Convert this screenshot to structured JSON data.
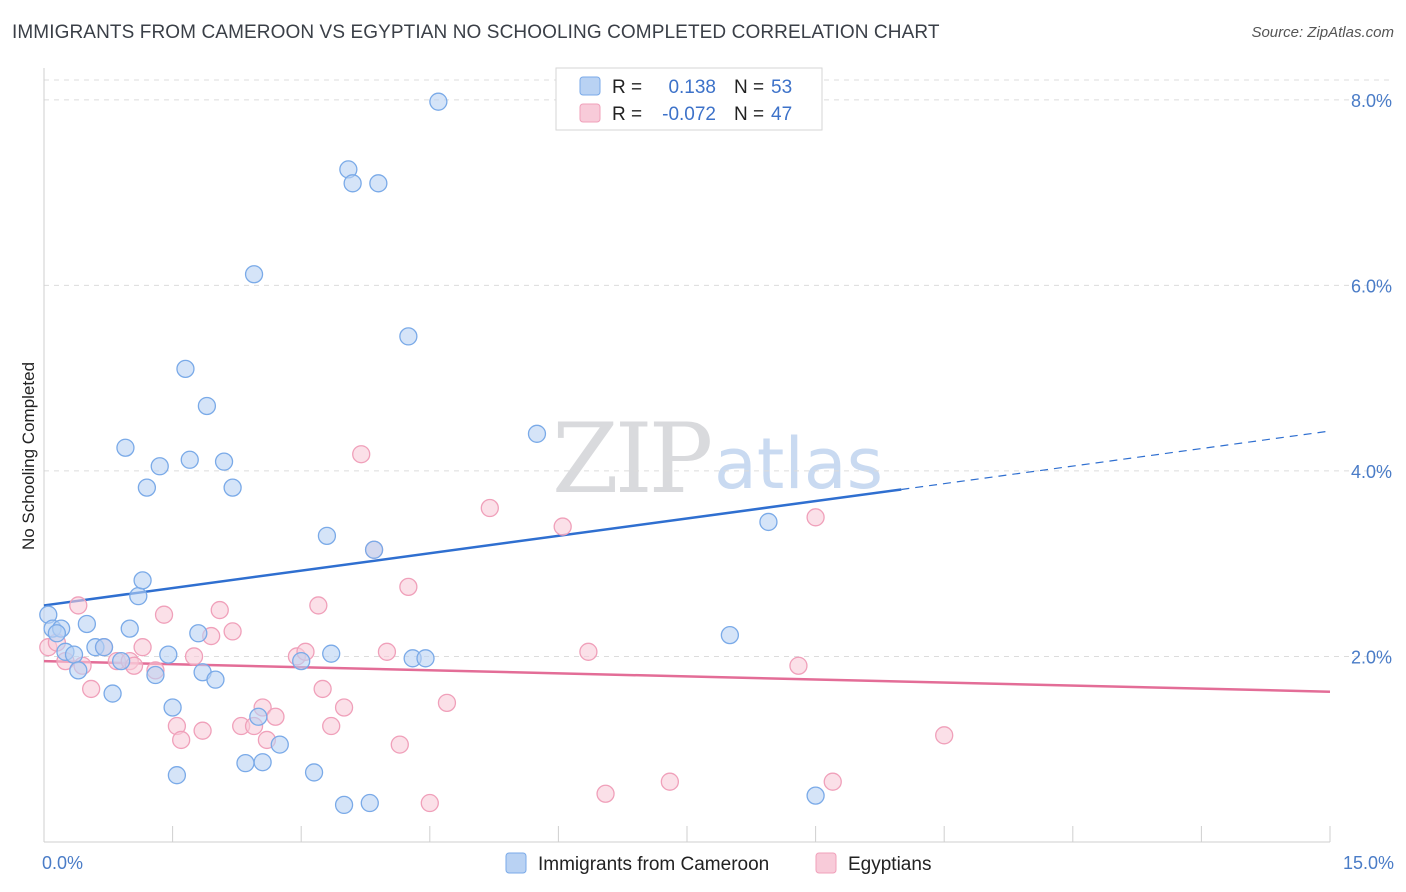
{
  "title": "IMMIGRANTS FROM CAMEROON VS EGYPTIAN NO SCHOOLING COMPLETED CORRELATION CHART",
  "source": "Source: ZipAtlas.com",
  "watermark": {
    "zip": "ZIP",
    "atlas": "atlas"
  },
  "chart_data": {
    "type": "scatter",
    "title": "IMMIGRANTS FROM CAMEROON VS EGYPTIAN NO SCHOOLING COMPLETED CORRELATION CHART",
    "xlabel": "",
    "ylabel": "No Schooling Completed",
    "xlim": [
      0,
      15
    ],
    "ylim": [
      0,
      8.3
    ],
    "x_tick_labels": [
      "0.0%",
      "15.0%"
    ],
    "y_ticks": [
      {
        "value": 2,
        "label": "2.0%"
      },
      {
        "value": 4,
        "label": "4.0%"
      },
      {
        "value": 6,
        "label": "6.0%"
      },
      {
        "value": 8,
        "label": "8.0%"
      }
    ],
    "grid": "horizontal dashed",
    "legend_position": "top-center",
    "series": [
      {
        "name": "Immigrants from Cameroon",
        "color": "#7aaae8",
        "fill": "#b9d2f3",
        "R": "0.138",
        "N": "53",
        "points": [
          [
            0.05,
            2.45
          ],
          [
            0.1,
            2.3
          ],
          [
            0.2,
            2.3
          ],
          [
            0.25,
            2.05
          ],
          [
            0.35,
            2.02
          ],
          [
            0.4,
            1.85
          ],
          [
            0.5,
            2.35
          ],
          [
            0.6,
            2.1
          ],
          [
            0.7,
            2.1
          ],
          [
            0.8,
            1.6
          ],
          [
            0.9,
            1.95
          ],
          [
            0.95,
            4.25
          ],
          [
            1.0,
            2.3
          ],
          [
            1.1,
            2.65
          ],
          [
            1.15,
            2.82
          ],
          [
            1.2,
            3.82
          ],
          [
            1.3,
            1.8
          ],
          [
            1.35,
            4.05
          ],
          [
            1.45,
            2.02
          ],
          [
            1.5,
            1.45
          ],
          [
            1.55,
            0.72
          ],
          [
            1.65,
            5.1
          ],
          [
            1.7,
            4.12
          ],
          [
            1.8,
            2.25
          ],
          [
            1.85,
            1.83
          ],
          [
            1.9,
            4.7
          ],
          [
            2.0,
            1.75
          ],
          [
            2.1,
            4.1
          ],
          [
            2.2,
            3.82
          ],
          [
            2.45,
            6.12
          ],
          [
            2.5,
            1.35
          ],
          [
            2.55,
            0.86
          ],
          [
            2.75,
            1.05
          ],
          [
            3.0,
            1.95
          ],
          [
            3.15,
            0.75
          ],
          [
            3.3,
            3.3
          ],
          [
            3.35,
            2.03
          ],
          [
            3.5,
            0.4
          ],
          [
            3.55,
            7.25
          ],
          [
            3.6,
            7.1
          ],
          [
            3.8,
            0.42
          ],
          [
            3.85,
            3.15
          ],
          [
            3.9,
            7.1
          ],
          [
            4.25,
            5.45
          ],
          [
            4.3,
            1.98
          ],
          [
            4.45,
            1.98
          ],
          [
            4.6,
            7.98
          ],
          [
            5.75,
            4.4
          ],
          [
            8.0,
            2.23
          ],
          [
            8.45,
            3.45
          ],
          [
            9.0,
            0.5
          ],
          [
            2.35,
            0.85
          ],
          [
            0.15,
            2.25
          ]
        ]
      },
      {
        "name": "Egyptians",
        "color": "#f0a0ba",
        "fill": "#f8cbd9",
        "R": "-0.072",
        "N": "47",
        "points": [
          [
            0.05,
            2.1
          ],
          [
            0.15,
            2.15
          ],
          [
            0.25,
            1.95
          ],
          [
            0.4,
            2.55
          ],
          [
            0.45,
            1.9
          ],
          [
            0.55,
            1.65
          ],
          [
            0.7,
            2.1
          ],
          [
            0.85,
            1.95
          ],
          [
            1.0,
            1.95
          ],
          [
            1.05,
            1.9
          ],
          [
            1.15,
            2.1
          ],
          [
            1.3,
            1.85
          ],
          [
            1.4,
            2.45
          ],
          [
            1.55,
            1.25
          ],
          [
            1.6,
            1.1
          ],
          [
            1.75,
            2.0
          ],
          [
            1.85,
            1.2
          ],
          [
            1.95,
            2.22
          ],
          [
            2.05,
            2.5
          ],
          [
            2.2,
            2.27
          ],
          [
            2.3,
            1.25
          ],
          [
            2.45,
            1.25
          ],
          [
            2.55,
            1.45
          ],
          [
            2.6,
            1.1
          ],
          [
            2.7,
            1.35
          ],
          [
            2.95,
            2.0
          ],
          [
            3.05,
            2.05
          ],
          [
            3.2,
            2.55
          ],
          [
            3.25,
            1.65
          ],
          [
            3.35,
            1.25
          ],
          [
            3.5,
            1.45
          ],
          [
            3.7,
            4.18
          ],
          [
            3.85,
            3.15
          ],
          [
            4.0,
            2.05
          ],
          [
            4.15,
            1.05
          ],
          [
            4.25,
            2.75
          ],
          [
            4.5,
            0.42
          ],
          [
            4.7,
            1.5
          ],
          [
            5.2,
            3.6
          ],
          [
            6.05,
            3.4
          ],
          [
            6.35,
            2.05
          ],
          [
            6.55,
            0.52
          ],
          [
            7.3,
            0.65
          ],
          [
            8.8,
            1.9
          ],
          [
            9.0,
            3.5
          ],
          [
            9.2,
            0.65
          ],
          [
            10.5,
            1.15
          ]
        ]
      }
    ],
    "trendlines": [
      {
        "series": "Immigrants from Cameroon",
        "x0": 0,
        "y0": 2.55,
        "x1": 10,
        "y1": 3.8,
        "dashed_to_x": 15,
        "dashed_to_y": 4.43
      },
      {
        "series": "Egyptians",
        "x0": 0,
        "y0": 1.95,
        "x1": 15,
        "y1": 1.62
      }
    ]
  },
  "legend": {
    "r_label": "R =",
    "n_label": "N =",
    "rows": [
      {
        "r": "0.138",
        "n": "53"
      },
      {
        "r": "-0.072",
        "n": "47"
      }
    ]
  },
  "bottom_legend": [
    "Immigrants from Cameroon",
    "Egyptians"
  ]
}
